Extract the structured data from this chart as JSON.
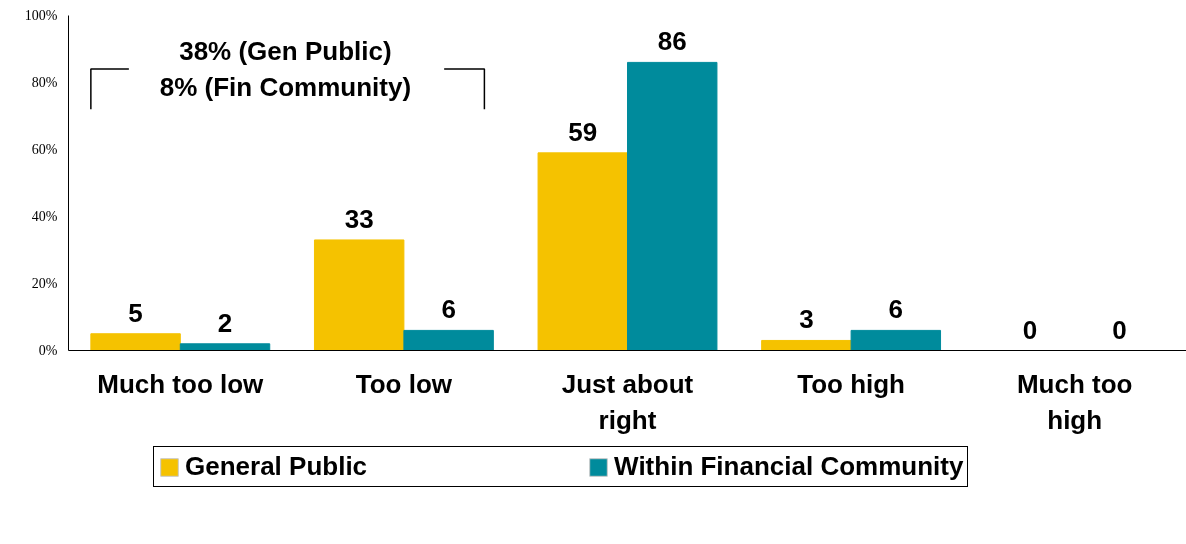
{
  "chart_data": {
    "type": "bar",
    "categories": [
      "Much too low",
      "Too low",
      "Just about right",
      "Too high",
      "Much too high"
    ],
    "series": [
      {
        "name": "General Public",
        "color": "#f5c200",
        "values": [
          5,
          33,
          59,
          3,
          0
        ]
      },
      {
        "name": "Within Financial Community",
        "color": "#008b9c",
        "values": [
          2,
          6,
          86,
          6,
          0
        ]
      }
    ],
    "ylim": [
      0,
      100
    ],
    "yticks": [
      {
        "value": 0,
        "label": "0%"
      },
      {
        "value": 20,
        "label": "20%"
      },
      {
        "value": 40,
        "label": "40%"
      },
      {
        "value": 60,
        "label": "60%"
      },
      {
        "value": 80,
        "label": "80%"
      },
      {
        "value": 100,
        "label": "100%"
      }
    ],
    "data_labels": true,
    "grid": false,
    "legend": "bottom",
    "annotations": [
      "38% (Gen Public)\n8% (Fin Community)"
    ]
  }
}
